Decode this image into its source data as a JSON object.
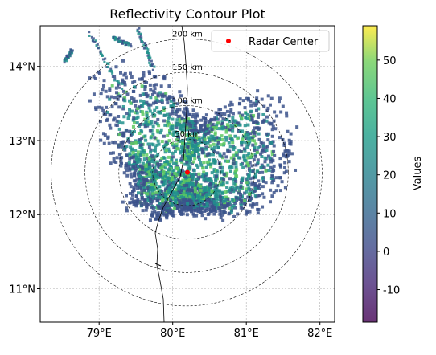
{
  "chart_data": {
    "type": "heatmap",
    "title": "Reflectivity Contour Plot",
    "xlabel": "",
    "ylabel": "",
    "xlim": [
      78.2,
      82.2
    ],
    "ylim": [
      10.55,
      14.55
    ],
    "x_ticks": [
      {
        "value": 79,
        "label": "79°E"
      },
      {
        "value": 80,
        "label": "80°E"
      },
      {
        "value": 81,
        "label": "81°E"
      },
      {
        "value": 82,
        "label": "82°E"
      }
    ],
    "y_ticks": [
      {
        "value": 11,
        "label": "11°N"
      },
      {
        "value": 12,
        "label": "12°N"
      },
      {
        "value": 13,
        "label": "13°N"
      },
      {
        "value": 14,
        "label": "14°N"
      }
    ],
    "grid": true,
    "radar_center": {
      "lon": 80.2,
      "lat": 12.57,
      "label": "Radar Center",
      "color": "#ff0000"
    },
    "range_rings": [
      {
        "km": 50,
        "label": "50 km"
      },
      {
        "km": 100,
        "label": "100 km"
      },
      {
        "km": 150,
        "label": "150 km"
      },
      {
        "km": 200,
        "label": "200 km"
      }
    ],
    "legend": {
      "position": "top-right",
      "entries": [
        "Radar Center"
      ]
    },
    "colorbar": {
      "label": "Values",
      "min": -18.5,
      "max": 59,
      "ticks": [
        -10,
        0,
        10,
        20,
        30,
        40,
        50
      ],
      "colormap": "viridis",
      "alpha": 0.8
    },
    "echo_field": {
      "typical_values": [
        10,
        20,
        30
      ],
      "dense_region_value": 20,
      "colors": {
        "low": "#3b528b",
        "mid": "#21918c",
        "high": "#5ec962"
      }
    }
  }
}
